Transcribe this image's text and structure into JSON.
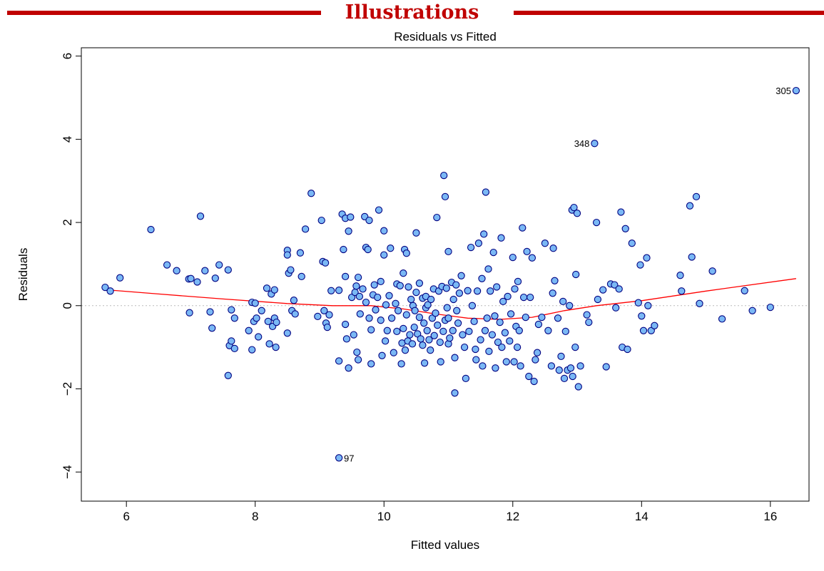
{
  "banner": {
    "text": "Illustrations"
  },
  "chart_data": {
    "type": "scatter",
    "title": "Residuals vs Fitted",
    "xlabel": "Fitted values",
    "ylabel": "Residuals",
    "xlim": [
      5.3,
      16.6
    ],
    "ylim": [
      -4.7,
      6.2
    ],
    "xticks": [
      6,
      8,
      10,
      12,
      14,
      16
    ],
    "yticks": [
      -4,
      -2,
      0,
      2,
      4,
      6
    ],
    "grid": false,
    "reference_line": {
      "y": 0,
      "style": "dotted",
      "color": "#bbbbbb"
    },
    "colors": {
      "point_fill": "#7ab8f5",
      "point_edge": "#000080",
      "smooth": "#ff0000"
    },
    "smooth": {
      "x": [
        5.7,
        6.5,
        7.5,
        8.5,
        9.2,
        9.8,
        10.3,
        10.8,
        11.3,
        11.8,
        12.3,
        12.8,
        13.3,
        14.0,
        15.0,
        16.4
      ],
      "y": [
        0.38,
        0.28,
        0.16,
        0.05,
        0.0,
        0.0,
        -0.08,
        -0.2,
        -0.3,
        -0.33,
        -0.28,
        -0.12,
        0.0,
        0.12,
        0.35,
        0.65
      ]
    },
    "labeled_points": [
      {
        "label": "305",
        "x": 16.4,
        "y": 5.17,
        "side": "left"
      },
      {
        "label": "348",
        "x": 13.27,
        "y": 3.9,
        "side": "left"
      },
      {
        "label": "97",
        "x": 9.3,
        "y": -3.66,
        "side": "right"
      }
    ],
    "points": [
      [
        5.67,
        0.44
      ],
      [
        5.75,
        0.35
      ],
      [
        5.9,
        0.67
      ],
      [
        6.38,
        1.83
      ],
      [
        6.63,
        0.98
      ],
      [
        6.78,
        0.84
      ],
      [
        6.97,
        0.64
      ],
      [
        7.0,
        0.65
      ],
      [
        6.98,
        -0.17
      ],
      [
        7.1,
        0.57
      ],
      [
        7.15,
        2.15
      ],
      [
        7.22,
        0.84
      ],
      [
        7.3,
        -0.15
      ],
      [
        7.33,
        -0.54
      ],
      [
        7.38,
        0.66
      ],
      [
        7.44,
        0.98
      ],
      [
        7.58,
        0.86
      ],
      [
        7.58,
        -1.68
      ],
      [
        7.6,
        -0.96
      ],
      [
        7.63,
        -0.1
      ],
      [
        7.63,
        -0.85
      ],
      [
        7.68,
        -0.3
      ],
      [
        7.68,
        -1.03
      ],
      [
        7.9,
        -0.6
      ],
      [
        7.95,
        0.08
      ],
      [
        7.95,
        -1.06
      ],
      [
        7.98,
        -0.38
      ],
      [
        8.0,
        0.06
      ],
      [
        8.02,
        -0.3
      ],
      [
        8.05,
        -0.75
      ],
      [
        8.1,
        -0.12
      ],
      [
        8.18,
        0.42
      ],
      [
        8.2,
        -0.38
      ],
      [
        8.22,
        -0.92
      ],
      [
        8.25,
        0.28
      ],
      [
        8.27,
        -0.5
      ],
      [
        8.3,
        -0.3
      ],
      [
        8.3,
        0.38
      ],
      [
        8.32,
        -1.0
      ],
      [
        8.33,
        -0.4
      ],
      [
        8.5,
        1.33
      ],
      [
        8.5,
        1.22
      ],
      [
        8.52,
        0.78
      ],
      [
        8.55,
        0.86
      ],
      [
        8.5,
        -0.66
      ],
      [
        8.57,
        -0.12
      ],
      [
        8.6,
        0.13
      ],
      [
        8.62,
        -0.2
      ],
      [
        8.7,
        1.27
      ],
      [
        8.72,
        0.7
      ],
      [
        8.78,
        1.84
      ],
      [
        8.87,
        2.7
      ],
      [
        8.97,
        -0.26
      ],
      [
        9.03,
        2.05
      ],
      [
        9.05,
        1.06
      ],
      [
        9.07,
        -0.12
      ],
      [
        9.09,
        1.03
      ],
      [
        9.1,
        -0.42
      ],
      [
        9.12,
        -0.52
      ],
      [
        9.15,
        -0.22
      ],
      [
        9.18,
        0.36
      ],
      [
        9.3,
        0.37
      ],
      [
        9.3,
        -1.33
      ],
      [
        9.35,
        2.2
      ],
      [
        9.37,
        1.35
      ],
      [
        9.4,
        2.1
      ],
      [
        9.4,
        0.7
      ],
      [
        9.4,
        -0.45
      ],
      [
        9.42,
        -0.8
      ],
      [
        9.45,
        -1.5
      ],
      [
        9.45,
        1.79
      ],
      [
        9.48,
        2.13
      ],
      [
        9.5,
        0.2
      ],
      [
        9.53,
        -0.7
      ],
      [
        9.55,
        0.32
      ],
      [
        9.57,
        0.47
      ],
      [
        9.58,
        -1.12
      ],
      [
        9.6,
        0.68
      ],
      [
        9.6,
        -1.3
      ],
      [
        9.62,
        0.22
      ],
      [
        9.63,
        -0.2
      ],
      [
        9.67,
        0.4
      ],
      [
        9.7,
        2.14
      ],
      [
        9.72,
        0.08
      ],
      [
        9.72,
        1.4
      ],
      [
        9.75,
        1.35
      ],
      [
        9.77,
        2.05
      ],
      [
        9.77,
        -0.3
      ],
      [
        9.8,
        -0.58
      ],
      [
        9.8,
        -1.4
      ],
      [
        9.83,
        0.26
      ],
      [
        9.85,
        0.5
      ],
      [
        9.87,
        -0.1
      ],
      [
        9.9,
        0.2
      ],
      [
        9.92,
        2.3
      ],
      [
        9.95,
        0.58
      ],
      [
        9.95,
        -0.35
      ],
      [
        9.97,
        -1.2
      ],
      [
        10.0,
        1.8
      ],
      [
        10.0,
        1.22
      ],
      [
        10.02,
        -0.85
      ],
      [
        10.03,
        0.02
      ],
      [
        10.05,
        -0.6
      ],
      [
        10.08,
        0.24
      ],
      [
        10.1,
        1.38
      ],
      [
        10.12,
        -0.3
      ],
      [
        10.15,
        -1.13
      ],
      [
        10.18,
        0.05
      ],
      [
        10.2,
        0.52
      ],
      [
        10.2,
        -0.62
      ],
      [
        10.22,
        -0.12
      ],
      [
        10.25,
        0.48
      ],
      [
        10.27,
        -1.4
      ],
      [
        10.28,
        -0.9
      ],
      [
        10.3,
        0.78
      ],
      [
        10.3,
        -0.55
      ],
      [
        10.32,
        1.35
      ],
      [
        10.33,
        -1.07
      ],
      [
        10.35,
        1.26
      ],
      [
        10.35,
        -0.22
      ],
      [
        10.37,
        -0.85
      ],
      [
        10.38,
        0.45
      ],
      [
        10.4,
        -0.7
      ],
      [
        10.42,
        0.15
      ],
      [
        10.44,
        -0.92
      ],
      [
        10.45,
        0.0
      ],
      [
        10.47,
        -0.52
      ],
      [
        10.48,
        -0.12
      ],
      [
        10.5,
        1.75
      ],
      [
        10.5,
        0.32
      ],
      [
        10.52,
        -0.68
      ],
      [
        10.55,
        0.54
      ],
      [
        10.55,
        -0.28
      ],
      [
        10.57,
        -0.8
      ],
      [
        10.6,
        0.18
      ],
      [
        10.6,
        -0.95
      ],
      [
        10.62,
        -0.42
      ],
      [
        10.63,
        -1.38
      ],
      [
        10.65,
        0.22
      ],
      [
        10.65,
        -0.05
      ],
      [
        10.67,
        -0.6
      ],
      [
        10.68,
        0.02
      ],
      [
        10.7,
        -0.82
      ],
      [
        10.72,
        -1.07
      ],
      [
        10.73,
        0.15
      ],
      [
        10.75,
        -0.3
      ],
      [
        10.77,
        0.4
      ],
      [
        10.78,
        -0.72
      ],
      [
        10.8,
        -0.18
      ],
      [
        10.82,
        2.12
      ],
      [
        10.83,
        -0.47
      ],
      [
        10.85,
        0.35
      ],
      [
        10.87,
        -0.88
      ],
      [
        10.88,
        -1.35
      ],
      [
        10.9,
        0.46
      ],
      [
        10.92,
        -0.62
      ],
      [
        10.93,
        3.13
      ],
      [
        10.95,
        -0.35
      ],
      [
        10.95,
        2.62
      ],
      [
        10.97,
        0.42
      ],
      [
        10.98,
        -0.05
      ],
      [
        11.0,
        1.3
      ],
      [
        11.0,
        -0.3
      ],
      [
        11.0,
        -0.92
      ],
      [
        11.02,
        -0.78
      ],
      [
        11.05,
        0.56
      ],
      [
        11.07,
        -0.6
      ],
      [
        11.08,
        0.15
      ],
      [
        11.1,
        -2.1
      ],
      [
        11.1,
        -1.25
      ],
      [
        11.12,
        0.5
      ],
      [
        11.13,
        -0.12
      ],
      [
        11.15,
        -0.42
      ],
      [
        11.17,
        0.3
      ],
      [
        11.2,
        0.72
      ],
      [
        11.22,
        -0.7
      ],
      [
        11.25,
        -1.0
      ],
      [
        11.27,
        -1.75
      ],
      [
        11.3,
        0.36
      ],
      [
        11.32,
        -0.62
      ],
      [
        11.35,
        1.4
      ],
      [
        11.37,
        0.0
      ],
      [
        11.4,
        -0.38
      ],
      [
        11.42,
        -1.05
      ],
      [
        11.43,
        -1.3
      ],
      [
        11.45,
        0.35
      ],
      [
        11.47,
        1.5
      ],
      [
        11.5,
        -0.82
      ],
      [
        11.52,
        0.65
      ],
      [
        11.53,
        -1.45
      ],
      [
        11.55,
        1.72
      ],
      [
        11.57,
        -0.6
      ],
      [
        11.58,
        2.73
      ],
      [
        11.6,
        -0.3
      ],
      [
        11.62,
        0.88
      ],
      [
        11.63,
        -1.1
      ],
      [
        11.65,
        0.35
      ],
      [
        11.68,
        -0.7
      ],
      [
        11.7,
        1.28
      ],
      [
        11.72,
        -0.25
      ],
      [
        11.73,
        -1.5
      ],
      [
        11.75,
        0.45
      ],
      [
        11.77,
        -0.88
      ],
      [
        11.8,
        -0.4
      ],
      [
        11.82,
        1.63
      ],
      [
        11.83,
        -1.0
      ],
      [
        11.85,
        0.1
      ],
      [
        11.88,
        -0.65
      ],
      [
        11.9,
        -1.35
      ],
      [
        11.92,
        0.22
      ],
      [
        11.95,
        -0.85
      ],
      [
        11.97,
        -0.2
      ],
      [
        12.0,
        1.16
      ],
      [
        12.02,
        -1.35
      ],
      [
        12.03,
        0.4
      ],
      [
        12.05,
        -0.5
      ],
      [
        12.07,
        -1.0
      ],
      [
        12.08,
        0.58
      ],
      [
        12.1,
        -0.6
      ],
      [
        12.12,
        -1.45
      ],
      [
        12.15,
        1.87
      ],
      [
        12.17,
        0.2
      ],
      [
        12.2,
        -0.28
      ],
      [
        12.22,
        1.3
      ],
      [
        12.25,
        -1.7
      ],
      [
        12.27,
        0.2
      ],
      [
        12.3,
        1.15
      ],
      [
        12.33,
        -1.82
      ],
      [
        12.35,
        -1.3
      ],
      [
        12.38,
        -1.13
      ],
      [
        12.4,
        -0.45
      ],
      [
        12.45,
        -0.28
      ],
      [
        12.5,
        1.5
      ],
      [
        12.55,
        -0.6
      ],
      [
        12.6,
        -1.45
      ],
      [
        12.62,
        0.3
      ],
      [
        12.63,
        1.38
      ],
      [
        12.65,
        0.6
      ],
      [
        12.7,
        -0.3
      ],
      [
        12.72,
        -1.55
      ],
      [
        12.75,
        -1.22
      ],
      [
        12.78,
        0.1
      ],
      [
        12.8,
        -1.75
      ],
      [
        12.82,
        -0.62
      ],
      [
        12.85,
        -1.55
      ],
      [
        12.88,
        0.0
      ],
      [
        12.9,
        -1.5
      ],
      [
        12.92,
        2.3
      ],
      [
        12.93,
        -1.7
      ],
      [
        12.95,
        2.36
      ],
      [
        12.97,
        -1.0
      ],
      [
        12.98,
        0.75
      ],
      [
        13.0,
        2.22
      ],
      [
        13.02,
        -1.95
      ],
      [
        13.05,
        -1.45
      ],
      [
        13.15,
        -0.22
      ],
      [
        13.18,
        -0.4
      ],
      [
        13.3,
        2.0
      ],
      [
        13.32,
        0.15
      ],
      [
        13.4,
        0.38
      ],
      [
        13.45,
        -1.47
      ],
      [
        13.52,
        0.52
      ],
      [
        13.58,
        0.5
      ],
      [
        13.6,
        -0.05
      ],
      [
        13.65,
        0.4
      ],
      [
        13.68,
        2.25
      ],
      [
        13.7,
        -1.0
      ],
      [
        13.75,
        1.85
      ],
      [
        13.78,
        -1.05
      ],
      [
        13.85,
        1.5
      ],
      [
        13.95,
        0.07
      ],
      [
        13.98,
        0.98
      ],
      [
        14.0,
        -0.25
      ],
      [
        14.03,
        -0.6
      ],
      [
        14.08,
        1.15
      ],
      [
        14.1,
        0.0
      ],
      [
        14.15,
        -0.6
      ],
      [
        14.2,
        -0.48
      ],
      [
        14.6,
        0.73
      ],
      [
        14.62,
        0.35
      ],
      [
        14.75,
        2.4
      ],
      [
        14.78,
        1.17
      ],
      [
        14.85,
        2.62
      ],
      [
        14.9,
        0.05
      ],
      [
        15.1,
        0.83
      ],
      [
        15.25,
        -0.32
      ],
      [
        15.6,
        0.36
      ],
      [
        15.72,
        -0.12
      ],
      [
        16.0,
        -0.04
      ],
      [
        16.4,
        5.17
      ],
      [
        13.27,
        3.9
      ],
      [
        9.3,
        -3.66
      ]
    ]
  }
}
